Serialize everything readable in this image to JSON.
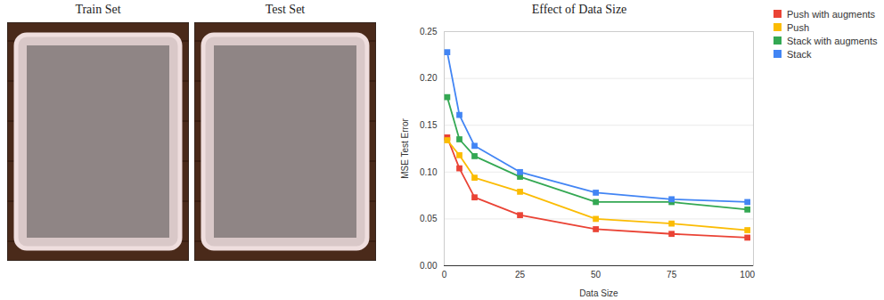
{
  "images": [
    {
      "title": "Train Set"
    },
    {
      "title": "Test Set"
    }
  ],
  "chart_data": {
    "type": "line",
    "title": "Effect of Data Size",
    "x_label": "Data Size",
    "y_label": "MSE Test Error",
    "x": [
      1,
      5,
      10,
      25,
      50,
      75,
      100
    ],
    "series": [
      {
        "name": "Push with augments",
        "color": "#ea4335",
        "marker": "square",
        "values": [
          0.137,
          0.104,
          0.073,
          0.054,
          0.039,
          0.034,
          0.03
        ]
      },
      {
        "name": "Push",
        "color": "#fbbc04",
        "marker": "square",
        "values": [
          0.134,
          0.118,
          0.094,
          0.079,
          0.05,
          0.045,
          0.038
        ]
      },
      {
        "name": "Stack with augments",
        "color": "#34a853",
        "marker": "square",
        "values": [
          0.18,
          0.135,
          0.117,
          0.095,
          0.068,
          0.068,
          0.06
        ]
      },
      {
        "name": "Stack",
        "color": "#4285f4",
        "marker": "square",
        "values": [
          0.228,
          0.161,
          0.128,
          0.1,
          0.078,
          0.071,
          0.068
        ]
      }
    ],
    "xlim": [
      0,
      102
    ],
    "xticks": [
      0,
      25,
      50,
      75,
      100
    ],
    "ylim": [
      0,
      0.25
    ],
    "yticks": [
      {
        "value": 0,
        "label": "0.00"
      },
      {
        "value": 0.05,
        "label": "0.05"
      },
      {
        "value": 0.1,
        "label": "0.10"
      },
      {
        "value": 0.15,
        "label": "0.15"
      },
      {
        "value": 0.2,
        "label": "0.20"
      },
      {
        "value": 0.25,
        "label": "0.25"
      }
    ],
    "grid": true,
    "legend": "top-right"
  }
}
